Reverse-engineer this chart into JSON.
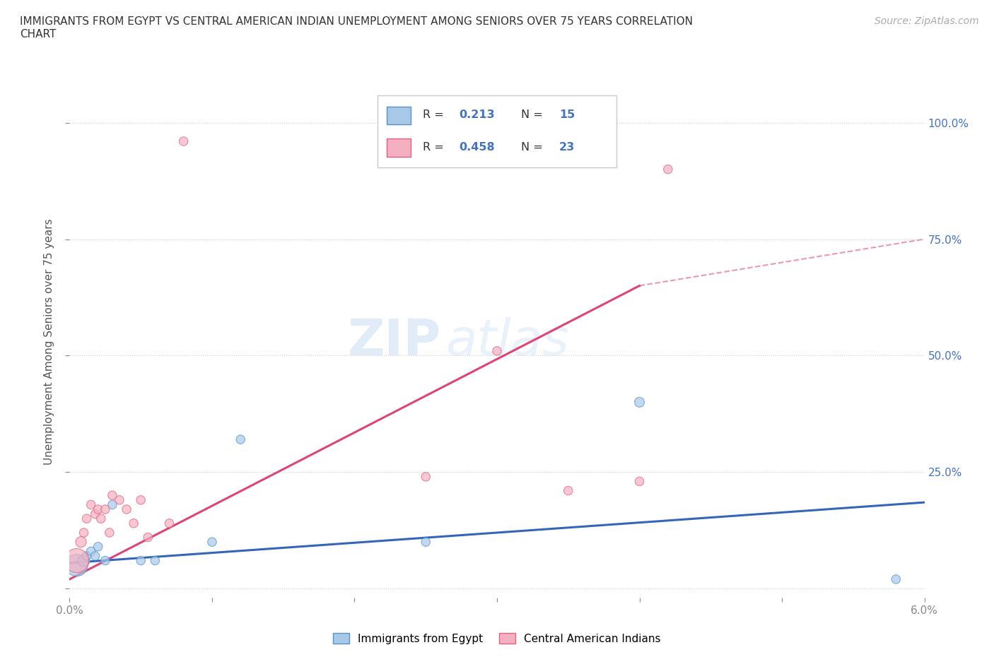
{
  "title": "IMMIGRANTS FROM EGYPT VS CENTRAL AMERICAN INDIAN UNEMPLOYMENT AMONG SENIORS OVER 75 YEARS CORRELATION\nCHART",
  "source": "Source: ZipAtlas.com",
  "ylabel": "Unemployment Among Seniors over 75 years",
  "xlim": [
    0.0,
    6.0
  ],
  "ylim": [
    -2.0,
    108.0
  ],
  "blue_R": 0.213,
  "blue_N": 15,
  "pink_R": 0.458,
  "pink_N": 23,
  "blue_color": "#a8c8e8",
  "pink_color": "#f4b0c0",
  "blue_edge_color": "#5590c8",
  "pink_edge_color": "#e06080",
  "blue_line_color": "#3366bb",
  "pink_line_color": "#dd4477",
  "legend_label_blue": "Immigrants from Egypt",
  "legend_label_pink": "Central American Indians",
  "blue_x": [
    0.05,
    0.1,
    0.12,
    0.15,
    0.18,
    0.2,
    0.25,
    0.3,
    0.5,
    0.6,
    1.0,
    1.2,
    2.5,
    4.0,
    5.8
  ],
  "blue_y": [
    5,
    6,
    7,
    8,
    7,
    9,
    6,
    18,
    6,
    6,
    10,
    32,
    10,
    40,
    2
  ],
  "blue_size": [
    500,
    150,
    80,
    80,
    80,
    80,
    80,
    80,
    80,
    80,
    80,
    80,
    80,
    100,
    80
  ],
  "pink_x": [
    0.05,
    0.08,
    0.1,
    0.12,
    0.15,
    0.18,
    0.2,
    0.22,
    0.25,
    0.28,
    0.3,
    0.35,
    0.4,
    0.45,
    0.5,
    0.55,
    0.7,
    0.8,
    2.5,
    3.0,
    3.5,
    4.0,
    4.2
  ],
  "pink_y": [
    6,
    10,
    12,
    15,
    18,
    16,
    17,
    15,
    17,
    12,
    20,
    19,
    17,
    14,
    19,
    11,
    14,
    96,
    24,
    51,
    21,
    23,
    90
  ],
  "pink_size": [
    600,
    120,
    80,
    80,
    80,
    80,
    80,
    80,
    80,
    80,
    80,
    80,
    80,
    80,
    80,
    80,
    80,
    80,
    80,
    80,
    80,
    80,
    80
  ],
  "watermark": "ZIPatlas",
  "background_color": "#ffffff",
  "grid_color": "#cccccc",
  "pink_trend_x0": 0.0,
  "pink_trend_y0": 2.0,
  "pink_trend_x1": 4.0,
  "pink_trend_y1": 65.0,
  "pink_dash_x0": 4.0,
  "pink_dash_y0": 65.0,
  "pink_dash_x1": 6.0,
  "pink_dash_y1": 75.0,
  "blue_trend_x0": 0.0,
  "blue_trend_y0": 5.5,
  "blue_trend_x1": 6.0,
  "blue_trend_y1": 18.5
}
